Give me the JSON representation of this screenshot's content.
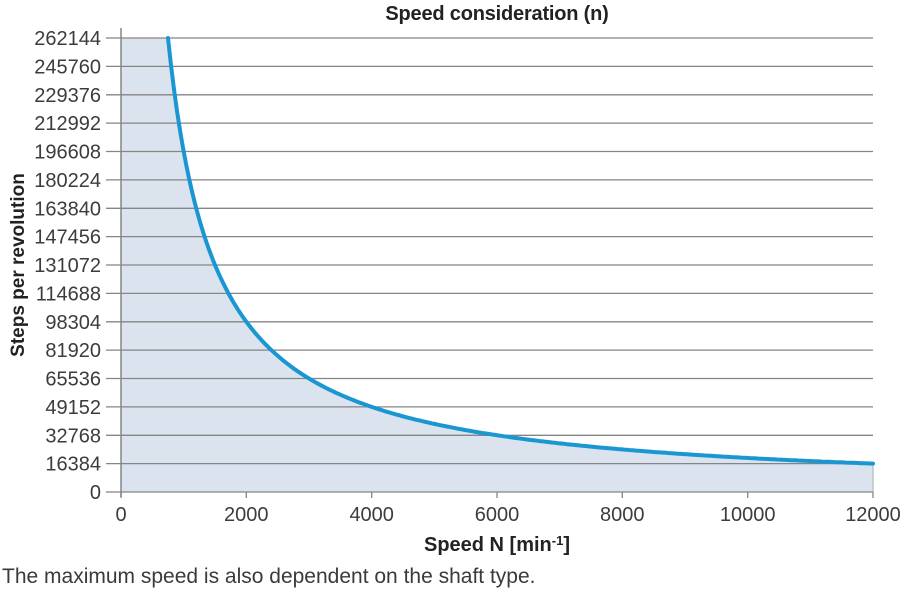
{
  "chart_data": {
    "type": "area",
    "title": "Speed consideration (n)",
    "xlabel": "Speed N [min⁻¹]",
    "xlabel_parts": {
      "base": "Speed N [min",
      "sup": "-1",
      "end": "]"
    },
    "ylabel": "Steps per revolution",
    "xlim": [
      0,
      12000
    ],
    "ylim": [
      0,
      262144
    ],
    "x_ticks": [
      0,
      2000,
      4000,
      6000,
      8000,
      10000,
      12000
    ],
    "y_ticks": [
      0,
      16384,
      32768,
      49152,
      65536,
      81920,
      98304,
      114688,
      131072,
      147456,
      163840,
      180224,
      196608,
      212992,
      229376,
      245760,
      262144
    ],
    "xy_constant": 196608000,
    "points": [
      [
        750,
        262144
      ],
      [
        800,
        245760
      ],
      [
        857,
        229376
      ],
      [
        923,
        212992
      ],
      [
        1000,
        196608
      ],
      [
        1091,
        180224
      ],
      [
        1200,
        163840
      ],
      [
        1333,
        147456
      ],
      [
        1500,
        131072
      ],
      [
        1714,
        114688
      ],
      [
        2000,
        98304
      ],
      [
        2400,
        81920
      ],
      [
        3000,
        65536
      ],
      [
        4000,
        49152
      ],
      [
        6000,
        32768
      ],
      [
        8000,
        24576
      ],
      [
        10000,
        19661
      ],
      [
        12000,
        16384
      ]
    ],
    "grid": true,
    "legend": "none",
    "line_color": "#1a96d2",
    "fill_color": "#dbe4ee",
    "grid_color": "#858585",
    "fill_edge_color": "#aeb8c2"
  },
  "caption": {
    "text": "The maximum speed is also dependent on the shaft type."
  }
}
